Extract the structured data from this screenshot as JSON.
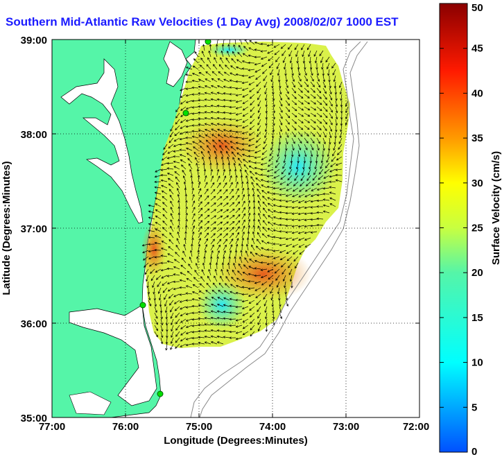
{
  "title": "Southern Mid-Atlantic Raw Velocities (1 Day Avg) 2008/02/07 1000 EST",
  "map": {
    "xlabel": "Longitude (Degrees:Minutes)",
    "ylabel": "Latitude (Degrees:Minutes)",
    "x_ticks": [
      "77:00",
      "76:00",
      "75:00",
      "74:00",
      "73:00",
      "72:00"
    ],
    "y_ticks": [
      "39:00",
      "38:00",
      "37:00",
      "36:00",
      "35:00"
    ],
    "land_color": "#55f5a8",
    "grid": true
  },
  "colorbar": {
    "label": "Surface Velocity (cm/s)",
    "ticks": [
      "0",
      "5",
      "10",
      "15",
      "20",
      "25",
      "30",
      "35",
      "40",
      "45",
      "50"
    ],
    "range": [
      0,
      50
    ]
  }
}
